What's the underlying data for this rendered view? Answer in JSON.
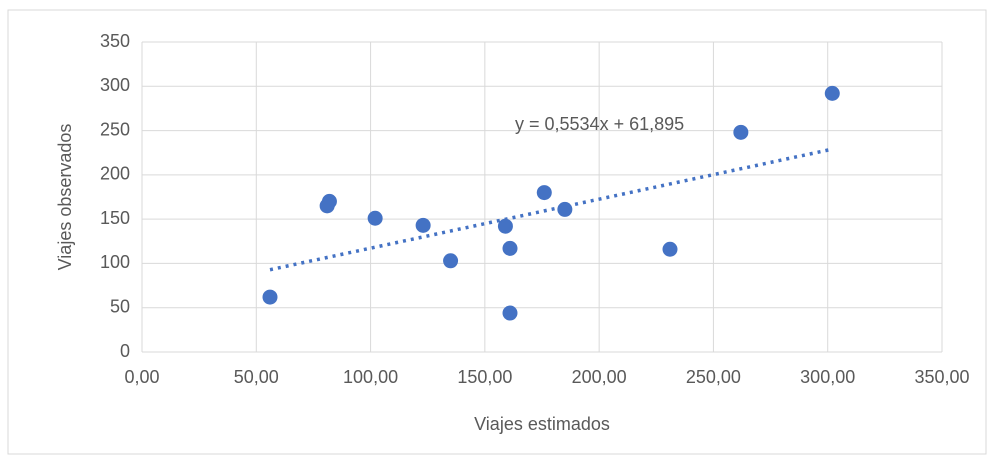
{
  "chart_data": {
    "type": "scatter",
    "x_label": "Viajes estimados",
    "y_label": "Viajes observados",
    "x": [
      56,
      81,
      82,
      102,
      123,
      135,
      159,
      161,
      161,
      176,
      185,
      231,
      262,
      302
    ],
    "series": [
      {
        "color": "#4472c4",
        "values": [
          62,
          165,
          170,
          151,
          143,
          103,
          142,
          117,
          44,
          180,
          161,
          116,
          248,
          292
        ]
      }
    ],
    "trendline": {
      "label": "y = 0,5534x + 61,895",
      "slope": 0.5534,
      "intercept": 61.895,
      "color": "#4472c4"
    },
    "xlim": [
      0,
      350
    ],
    "xticks": [
      {
        "value": 0,
        "label": "0,00"
      },
      {
        "value": 50,
        "label": "50,00"
      },
      {
        "value": 100,
        "label": "100,00"
      },
      {
        "value": 150,
        "label": "150,00"
      },
      {
        "value": 200,
        "label": "200,00"
      },
      {
        "value": 250,
        "label": "250,00"
      },
      {
        "value": 300,
        "label": "300,00"
      },
      {
        "value": 350,
        "label": "350,00"
      }
    ],
    "ylim": [
      0,
      350
    ],
    "yticks": [
      0,
      50,
      100,
      150,
      200,
      250,
      300,
      350
    ],
    "grid": true
  }
}
